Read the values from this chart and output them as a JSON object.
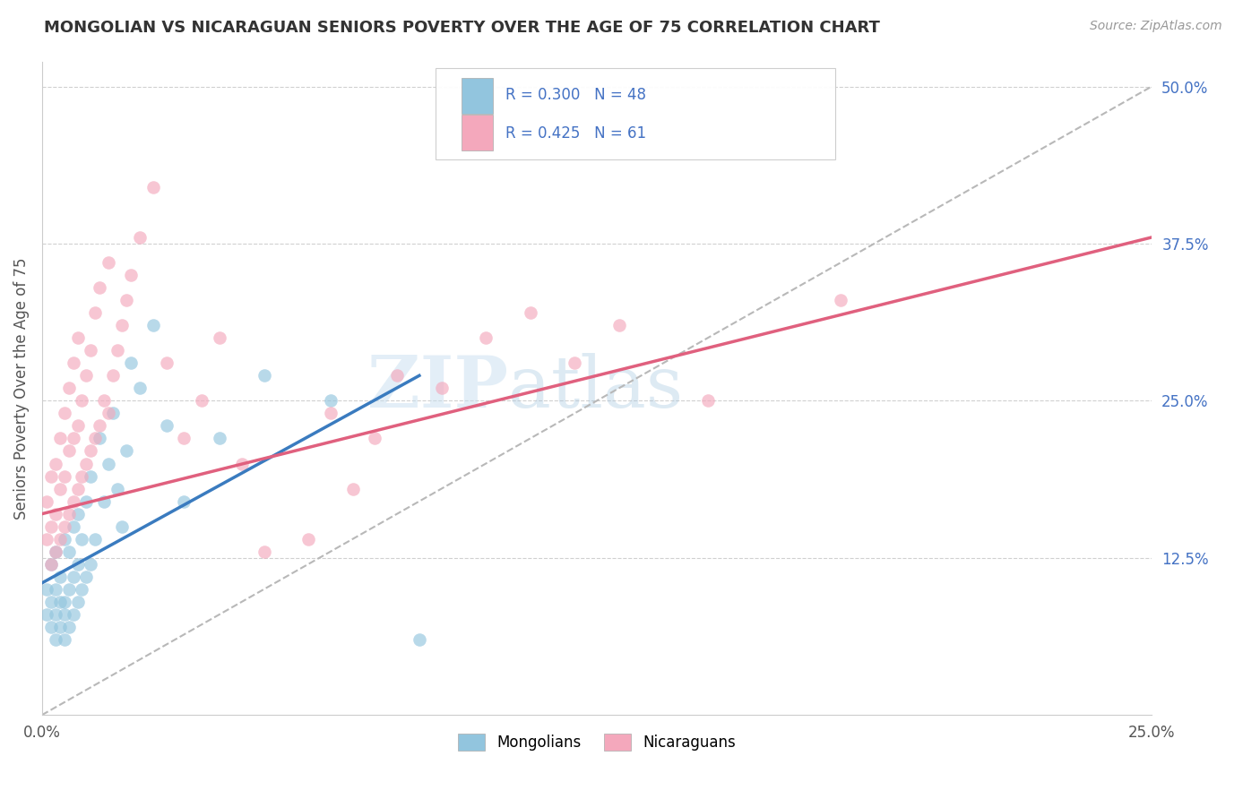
{
  "title": "MONGOLIAN VS NICARAGUAN SENIORS POVERTY OVER THE AGE OF 75 CORRELATION CHART",
  "source": "Source: ZipAtlas.com",
  "ylabel": "Seniors Poverty Over the Age of 75",
  "xlim": [
    0.0,
    0.25
  ],
  "ylim": [
    0.0,
    0.52
  ],
  "mongolian_color": "#92c5de",
  "nicaraguan_color": "#f4a8bc",
  "mongolian_line_color": "#3a7bbf",
  "nicaraguan_line_color": "#e0607e",
  "dashed_line_color": "#b8b8b8",
  "R_mongolian": 0.3,
  "N_mongolian": 48,
  "R_nicaraguan": 0.425,
  "N_nicaraguan": 61,
  "watermark_zip": "ZIP",
  "watermark_atlas": "atlas",
  "legend_label_mongolian": "Mongolians",
  "legend_label_nicaraguan": "Nicaraguans",
  "mongolian_x": [
    0.001,
    0.001,
    0.002,
    0.002,
    0.002,
    0.003,
    0.003,
    0.003,
    0.003,
    0.004,
    0.004,
    0.004,
    0.005,
    0.005,
    0.005,
    0.005,
    0.006,
    0.006,
    0.006,
    0.007,
    0.007,
    0.007,
    0.008,
    0.008,
    0.008,
    0.009,
    0.009,
    0.01,
    0.01,
    0.011,
    0.011,
    0.012,
    0.013,
    0.014,
    0.015,
    0.016,
    0.017,
    0.018,
    0.019,
    0.02,
    0.022,
    0.025,
    0.028,
    0.032,
    0.04,
    0.05,
    0.065,
    0.085
  ],
  "mongolian_y": [
    0.08,
    0.1,
    0.07,
    0.09,
    0.12,
    0.06,
    0.08,
    0.1,
    0.13,
    0.07,
    0.09,
    0.11,
    0.06,
    0.08,
    0.09,
    0.14,
    0.07,
    0.1,
    0.13,
    0.08,
    0.11,
    0.15,
    0.09,
    0.12,
    0.16,
    0.1,
    0.14,
    0.11,
    0.17,
    0.12,
    0.19,
    0.14,
    0.22,
    0.17,
    0.2,
    0.24,
    0.18,
    0.15,
    0.21,
    0.28,
    0.26,
    0.31,
    0.23,
    0.17,
    0.22,
    0.27,
    0.25,
    0.06
  ],
  "nicaraguan_x": [
    0.001,
    0.001,
    0.002,
    0.002,
    0.002,
    0.003,
    0.003,
    0.003,
    0.004,
    0.004,
    0.004,
    0.005,
    0.005,
    0.005,
    0.006,
    0.006,
    0.006,
    0.007,
    0.007,
    0.007,
    0.008,
    0.008,
    0.008,
    0.009,
    0.009,
    0.01,
    0.01,
    0.011,
    0.011,
    0.012,
    0.012,
    0.013,
    0.013,
    0.014,
    0.015,
    0.015,
    0.016,
    0.017,
    0.018,
    0.019,
    0.02,
    0.022,
    0.025,
    0.028,
    0.032,
    0.036,
    0.04,
    0.045,
    0.05,
    0.06,
    0.065,
    0.07,
    0.075,
    0.08,
    0.09,
    0.1,
    0.11,
    0.12,
    0.13,
    0.15,
    0.18
  ],
  "nicaraguan_y": [
    0.14,
    0.17,
    0.12,
    0.15,
    0.19,
    0.13,
    0.16,
    0.2,
    0.14,
    0.18,
    0.22,
    0.15,
    0.19,
    0.24,
    0.16,
    0.21,
    0.26,
    0.17,
    0.22,
    0.28,
    0.18,
    0.23,
    0.3,
    0.19,
    0.25,
    0.2,
    0.27,
    0.21,
    0.29,
    0.22,
    0.32,
    0.23,
    0.34,
    0.25,
    0.24,
    0.36,
    0.27,
    0.29,
    0.31,
    0.33,
    0.35,
    0.38,
    0.42,
    0.28,
    0.22,
    0.25,
    0.3,
    0.2,
    0.13,
    0.14,
    0.24,
    0.18,
    0.22,
    0.27,
    0.26,
    0.3,
    0.32,
    0.28,
    0.31,
    0.25,
    0.33
  ],
  "mongolian_line_x": [
    0.0,
    0.085
  ],
  "mongolian_line_y": [
    0.105,
    0.27
  ],
  "nicaraguan_line_x": [
    0.0,
    0.25
  ],
  "nicaraguan_line_y": [
    0.16,
    0.38
  ],
  "dashed_line_x": [
    0.0,
    0.25
  ],
  "dashed_line_y": [
    0.0,
    0.5
  ]
}
